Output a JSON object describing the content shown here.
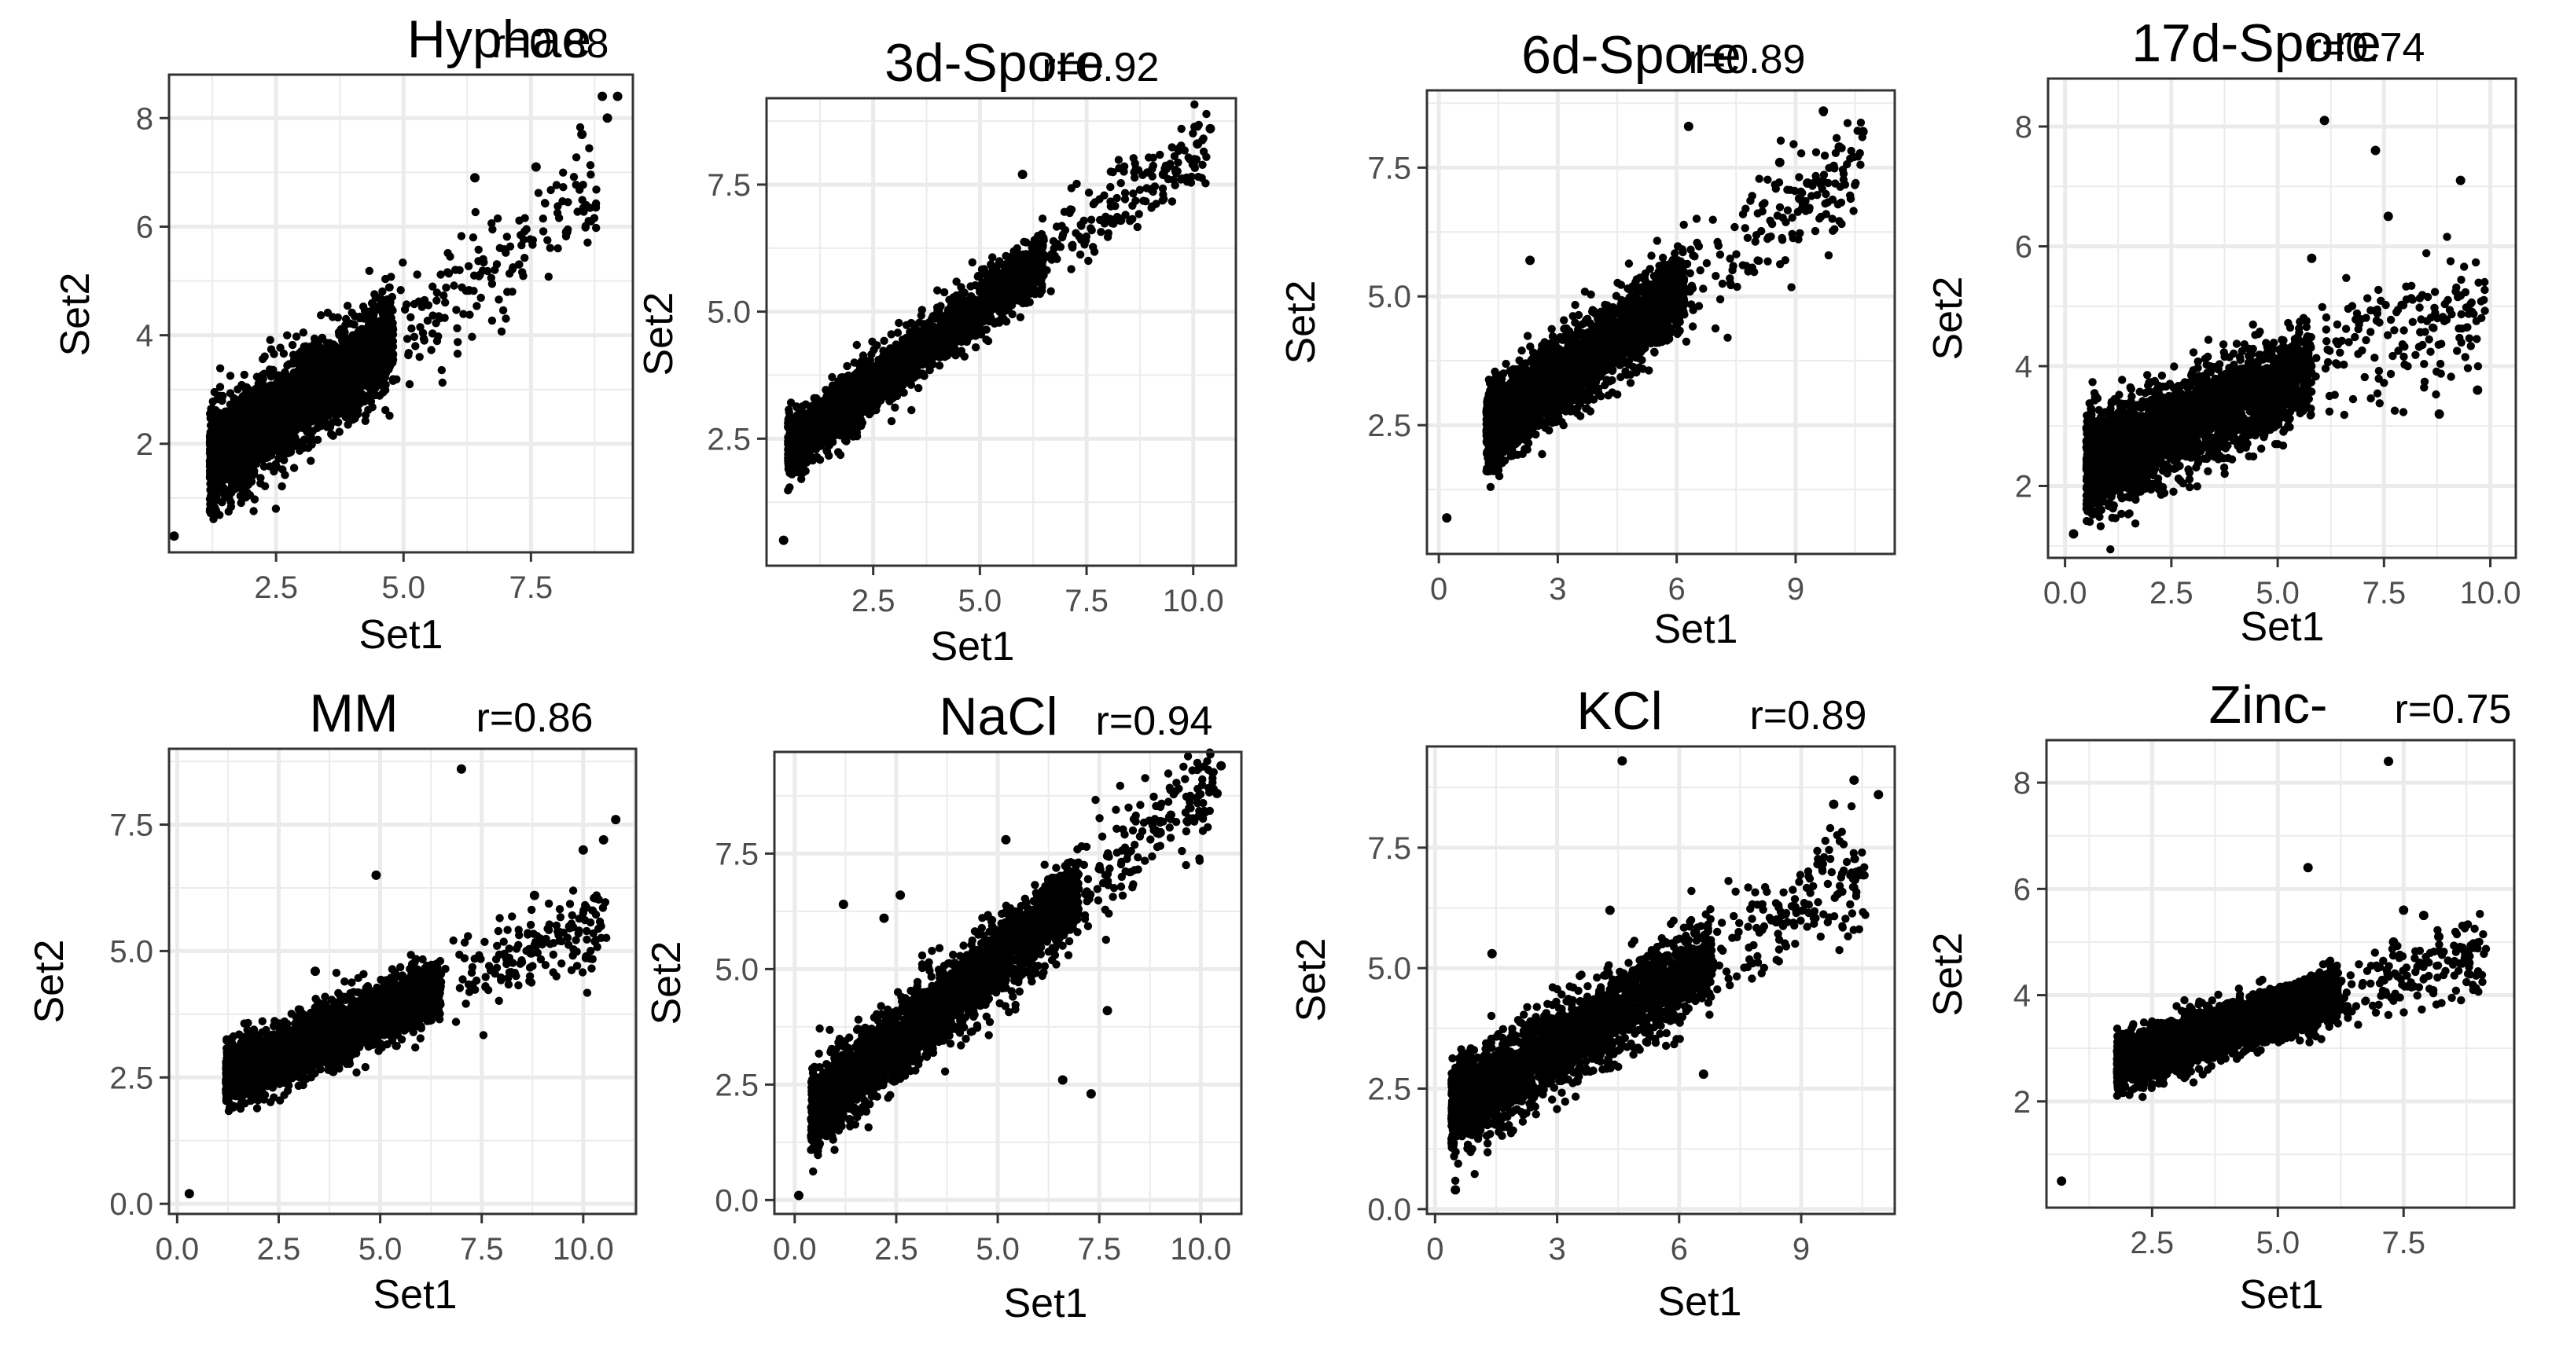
{
  "figure": {
    "background": "#ffffff",
    "panel_background": "#ffffff",
    "grid_color": "#ebebeb",
    "point_color": "#000000",
    "border_color": "#333333"
  },
  "chart_data": [
    {
      "type": "scatter",
      "title": "Hyphae",
      "annotation": "r=0.88",
      "xlabel": "Set1",
      "ylabel": "Set2",
      "xlim": [
        0.4,
        9.5
      ],
      "ylim": [
        0.0,
        8.8
      ],
      "xticks": [
        2.5,
        5.0,
        7.5
      ],
      "xtick_labels": [
        "2.5",
        "5.0",
        "7.5"
      ],
      "yticks": [
        2,
        4,
        6,
        8
      ],
      "ytick_labels": [
        "2",
        "4",
        "6",
        "8"
      ],
      "grid": true,
      "r": 0.88,
      "cloud": {
        "x_min": 1.2,
        "x_max": 4.8,
        "slope": 0.62,
        "intercept": 0.95,
        "spread": 0.45
      },
      "points": [
        [
          0.5,
          0.3
        ],
        [
          8.9,
          8.4
        ],
        [
          9.2,
          8.4
        ],
        [
          8.5,
          7.7
        ],
        [
          9.0,
          8.0
        ],
        [
          8.2,
          5.9
        ],
        [
          7.6,
          7.1
        ],
        [
          6.4,
          6.9
        ]
      ]
    },
    {
      "type": "scatter",
      "title": "3d-Spore",
      "annotation": "r=0.92",
      "xlabel": "Set1",
      "ylabel": "Set2",
      "xlim": [
        0.0,
        11.0
      ],
      "ylim": [
        0.0,
        9.2
      ],
      "xticks": [
        2.5,
        5.0,
        7.5,
        10.0
      ],
      "xtick_labels": [
        "2.5",
        "5.0",
        "7.5",
        "10.0"
      ],
      "yticks": [
        2.5,
        5.0,
        7.5
      ],
      "ytick_labels": [
        "2.5",
        "5.0",
        "7.5"
      ],
      "grid": true,
      "r": 0.92,
      "cloud": {
        "x_min": 0.5,
        "x_max": 6.5,
        "slope": 0.62,
        "intercept": 2.0,
        "spread": 0.28
      },
      "points": [
        [
          0.4,
          0.5
        ],
        [
          10.4,
          8.6
        ],
        [
          10.1,
          8.3
        ],
        [
          10.0,
          7.9
        ],
        [
          6.0,
          7.7
        ],
        [
          9.3,
          7.7
        ],
        [
          8.3,
          6.8
        ]
      ]
    },
    {
      "type": "scatter",
      "title": "6d-Spore",
      "annotation": "r=0.89",
      "xlabel": "Set1",
      "ylabel": "Set2",
      "xlim": [
        -0.3,
        11.5
      ],
      "ylim": [
        0.0,
        9.0
      ],
      "xticks": [
        0,
        3,
        6,
        9
      ],
      "xtick_labels": [
        "0",
        "3",
        "6",
        "9"
      ],
      "yticks": [
        2.5,
        5.0,
        7.5
      ],
      "ytick_labels": [
        "2.5",
        "5.0",
        "7.5"
      ],
      "grid": true,
      "r": 0.89,
      "cloud": {
        "x_min": 1.2,
        "x_max": 6.2,
        "slope": 0.55,
        "intercept": 1.75,
        "spread": 0.38
      },
      "points": [
        [
          0.2,
          0.7
        ],
        [
          10.7,
          8.2
        ],
        [
          10.1,
          7.9
        ],
        [
          9.7,
          8.6
        ],
        [
          8.6,
          7.6
        ],
        [
          9.1,
          6.9
        ],
        [
          6.3,
          8.3
        ],
        [
          9.3,
          7.2
        ],
        [
          2.3,
          5.7
        ]
      ]
    },
    {
      "type": "scatter",
      "title": "17d-Spore",
      "annotation": "r=0.74",
      "xlabel": "Set1",
      "ylabel": "Set2",
      "xlim": [
        -0.4,
        10.6
      ],
      "ylim": [
        0.8,
        8.8
      ],
      "xticks": [
        0.0,
        2.5,
        5.0,
        7.5,
        10.0
      ],
      "xtick_labels": [
        "0.0",
        "2.5",
        "5.0",
        "7.5",
        "10.0"
      ],
      "yticks": [
        2,
        4,
        6,
        8
      ],
      "ytick_labels": [
        "2",
        "4",
        "6",
        "8"
      ],
      "grid": true,
      "r": 0.74,
      "cloud": {
        "x_min": 0.5,
        "x_max": 5.8,
        "slope": 0.3,
        "intercept": 2.2,
        "spread": 0.4
      },
      "points": [
        [
          0.2,
          1.2
        ],
        [
          6.1,
          8.1
        ],
        [
          7.3,
          7.6
        ],
        [
          9.3,
          7.1
        ],
        [
          9.7,
          3.6
        ],
        [
          8.8,
          3.2
        ],
        [
          5.8,
          5.8
        ],
        [
          7.6,
          6.5
        ]
      ]
    },
    {
      "type": "scatter",
      "title": "MM",
      "annotation": "r=0.86",
      "xlabel": "Set1",
      "ylabel": "Set2",
      "xlim": [
        -0.2,
        11.3
      ],
      "ylim": [
        -0.2,
        9.0
      ],
      "xticks": [
        0.0,
        2.5,
        5.0,
        7.5,
        10.0
      ],
      "xtick_labels": [
        "0.0",
        "2.5",
        "5.0",
        "7.5",
        "10.0"
      ],
      "yticks": [
        0.0,
        2.5,
        5.0,
        7.5
      ],
      "ytick_labels": [
        "0.0",
        "2.5",
        "5.0",
        "7.5"
      ],
      "grid": true,
      "r": 0.86,
      "cloud": {
        "x_min": 1.2,
        "x_max": 6.5,
        "slope": 0.33,
        "intercept": 2.1,
        "spread": 0.3
      },
      "points": [
        [
          0.3,
          0.2
        ],
        [
          7.0,
          8.6
        ],
        [
          4.9,
          6.5
        ],
        [
          10.8,
          7.6
        ],
        [
          10.5,
          7.2
        ],
        [
          10.0,
          7.0
        ],
        [
          3.4,
          4.6
        ],
        [
          8.8,
          6.1
        ]
      ]
    },
    {
      "type": "scatter",
      "title": "NaCl",
      "annotation": "r=0.94",
      "xlabel": "Set1",
      "ylabel": "Set2",
      "xlim": [
        -0.5,
        11.0
      ],
      "ylim": [
        -0.3,
        9.7
      ],
      "xticks": [
        0.0,
        2.5,
        5.0,
        7.5,
        10.0
      ],
      "xtick_labels": [
        "0.0",
        "2.5",
        "5.0",
        "7.5",
        "10.0"
      ],
      "yticks": [
        0.0,
        2.5,
        5.0,
        7.5
      ],
      "ytick_labels": [
        "0.0",
        "2.5",
        "5.0",
        "7.5"
      ],
      "grid": true,
      "r": 0.94,
      "cloud": {
        "x_min": 0.4,
        "x_max": 7.0,
        "slope": 0.72,
        "intercept": 1.6,
        "spread": 0.42
      },
      "points": [
        [
          0.1,
          0.1
        ],
        [
          10.5,
          9.4
        ],
        [
          10.4,
          8.8
        ],
        [
          10.1,
          8.4
        ],
        [
          5.2,
          7.8
        ],
        [
          1.2,
          6.4
        ],
        [
          2.2,
          6.1
        ],
        [
          2.6,
          6.6
        ],
        [
          7.7,
          4.1
        ],
        [
          6.6,
          2.6
        ],
        [
          7.3,
          2.3
        ]
      ]
    },
    {
      "type": "scatter",
      "title": "KCl",
      "annotation": "r=0.89",
      "xlabel": "Set1",
      "ylabel": "Set2",
      "xlim": [
        -0.2,
        11.3
      ],
      "ylim": [
        -0.1,
        9.6
      ],
      "xticks": [
        0,
        3,
        6,
        9
      ],
      "xtick_labels": [
        "0",
        "3",
        "6",
        "9"
      ],
      "yticks": [
        0.0,
        2.5,
        5.0,
        7.5
      ],
      "ytick_labels": [
        "0.0",
        "2.5",
        "5.0",
        "7.5"
      ],
      "grid": true,
      "r": 0.89,
      "cloud": {
        "x_min": 0.4,
        "x_max": 6.8,
        "slope": 0.48,
        "intercept": 1.9,
        "spread": 0.45
      },
      "points": [
        [
          0.5,
          0.4
        ],
        [
          4.6,
          9.3
        ],
        [
          10.3,
          8.9
        ],
        [
          10.9,
          8.6
        ],
        [
          9.8,
          8.4
        ],
        [
          1.4,
          5.3
        ],
        [
          4.3,
          6.2
        ],
        [
          6.6,
          2.8
        ]
      ]
    },
    {
      "type": "scatter",
      "title": "Zinc-",
      "annotation": "r=0.75",
      "xlabel": "Set1",
      "ylabel": "Set2",
      "xlim": [
        0.4,
        9.7
      ],
      "ylim": [
        0.0,
        8.8
      ],
      "xticks": [
        2.5,
        5.0,
        7.5
      ],
      "xtick_labels": [
        "2.5",
        "5.0",
        "7.5"
      ],
      "yticks": [
        2,
        4,
        6,
        8
      ],
      "ytick_labels": [
        "2",
        "4",
        "6",
        "8"
      ],
      "grid": true,
      "r": 0.75,
      "cloud": {
        "x_min": 1.8,
        "x_max": 6.2,
        "slope": 0.29,
        "intercept": 2.2,
        "spread": 0.25
      },
      "points": [
        [
          0.7,
          0.5
        ],
        [
          7.2,
          8.4
        ],
        [
          5.6,
          6.4
        ],
        [
          8.2,
          5.1
        ],
        [
          7.5,
          5.6
        ],
        [
          7.9,
          5.5
        ],
        [
          7.3,
          5.0
        ]
      ]
    }
  ]
}
